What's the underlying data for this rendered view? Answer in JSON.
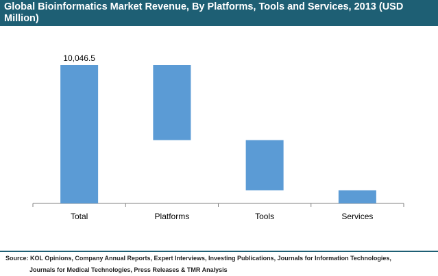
{
  "header": {
    "title": "Global Bioinformatics Market Revenue, By Platforms, Tools and Services, 2013 (USD Million)"
  },
  "footer": {
    "source_line1": "Source: KOL Opinions, Company Annual Reports, Expert Interviews, Investing Publications, Journals for Information Technologies,",
    "source_line2": "Journals for Medical Technologies, Press Releases & TMR Analysis"
  },
  "colors": {
    "header_bg": "#1e5f74",
    "bar": "#5b9bd5",
    "axis": "#808080"
  },
  "chart_data": {
    "type": "bar",
    "subtype": "waterfall",
    "title": "Global Bioinformatics Market Revenue, By Platforms, Tools and Services, 2013 (USD Million)",
    "xlabel": "",
    "ylabel": "",
    "categories": [
      "Total",
      "Platforms",
      "Tools",
      "Services"
    ],
    "series": [
      {
        "values": [
          10046.5,
          5450,
          3650,
          946.5
        ],
        "bases": [
          0,
          4596.5,
          946.5,
          0
        ]
      }
    ],
    "data_labels": [
      "10,046.5",
      "",
      "",
      ""
    ],
    "ylim": [
      0,
      10046.5
    ],
    "grid": false,
    "legend": "none"
  }
}
